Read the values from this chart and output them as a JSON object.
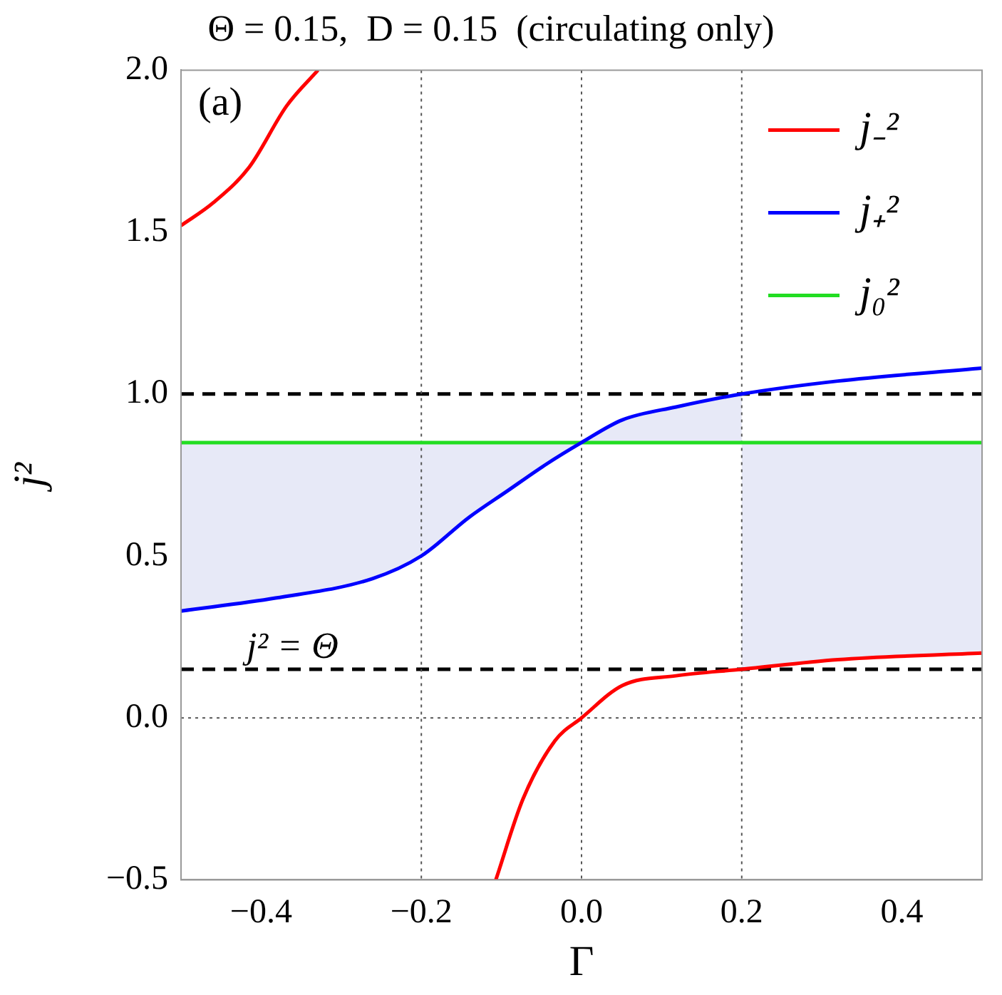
{
  "chart_data": {
    "type": "line",
    "title": "Θ = 0.15,  D = 0.15  (circulating only)",
    "xlabel": "Γ",
    "ylabel": "j²",
    "xlim": [
      -0.5,
      0.5
    ],
    "ylim": [
      -0.5,
      2.0
    ],
    "xticks": [
      {
        "value": -0.4,
        "label": "−0.4"
      },
      {
        "value": -0.2,
        "label": "−0.2"
      },
      {
        "value": 0,
        "label": "0.0"
      },
      {
        "value": 0.2,
        "label": "0.2"
      },
      {
        "value": 0.4,
        "label": "0.4"
      }
    ],
    "yticks": [
      {
        "value": -0.5,
        "label": "−0.5"
      },
      {
        "value": 0,
        "label": "0.0"
      },
      {
        "value": 0.5,
        "label": "0.5"
      },
      {
        "value": 1.0,
        "label": "1.0"
      },
      {
        "value": 1.5,
        "label": "1.5"
      },
      {
        "value": 2.0,
        "label": "2.0"
      }
    ],
    "legend": "top right",
    "series": [
      {
        "name": "j₋²",
        "color": "#ff0000",
        "x": [
          -0.5,
          -0.46,
          -0.415,
          -0.368,
          -0.329,
          -0.2,
          -0.107,
          -0.073,
          -0.033,
          0,
          0.051,
          0.118,
          0.2,
          0.32,
          0.5
        ],
        "values": [
          1.52,
          1.59,
          1.7,
          1.89,
          2.0,
          null,
          -0.5,
          -0.25,
          -0.07,
          0,
          0.1,
          0.13,
          0.15,
          0.18,
          0.2
        ]
      },
      {
        "name": "j₊²",
        "color": "#0000ff",
        "x": [
          -0.5,
          -0.382,
          -0.261,
          -0.2,
          -0.14,
          -0.093,
          -0.046,
          0,
          0.051,
          0.118,
          0.2,
          0.32,
          0.5
        ],
        "values": [
          0.33,
          0.37,
          0.43,
          0.5,
          0.62,
          0.7,
          0.78,
          0.85,
          0.92,
          0.96,
          1.0,
          1.04,
          1.08
        ]
      },
      {
        "name": "j₀²",
        "color": "#22dd22",
        "x": [
          -0.5,
          -0.382,
          -0.261,
          -0.2,
          -0.14,
          -0.093,
          -0.046,
          0,
          0.051,
          0.118,
          0.2,
          0.2,
          0.32,
          0.5
        ],
        "values": [
          0.85,
          0.85,
          0.85,
          0.85,
          0.85,
          0.85,
          0.85,
          0.85,
          0.85,
          0.85,
          0.85,
          0.85,
          0.85,
          0.85
        ],
        "lower": [
          0.33,
          0.37,
          0.43,
          0.5,
          0.62,
          0.7,
          0.78,
          0.85,
          0.85,
          0.85,
          0.85,
          0.15,
          0.18,
          0.2
        ],
        "upper": [
          0.85,
          0.85,
          0.85,
          0.85,
          0.85,
          0.85,
          0.85,
          0.85,
          0.92,
          0.96,
          1.0,
          0.85,
          0.85,
          0.85
        ]
      }
    ],
    "ref_lines": [
      {
        "axis": "y",
        "value": 1.0,
        "color": "#000000",
        "line_style": "dashed"
      },
      {
        "axis": "y",
        "value": 0.15,
        "label": "j² = Θ",
        "color": "#000000",
        "line_style": "dashed"
      },
      {
        "axis": "x",
        "value": -0.2,
        "color": "#555555",
        "line_style": "dotted"
      },
      {
        "axis": "x",
        "value": 0,
        "color": "#555555",
        "line_style": "dotted"
      },
      {
        "axis": "x",
        "value": 0.2,
        "color": "#555555",
        "line_style": "dotted"
      },
      {
        "axis": "y",
        "value": 0,
        "color": "#555555",
        "line_style": "dotted"
      }
    ],
    "annotations": [
      "(a)"
    ]
  }
}
